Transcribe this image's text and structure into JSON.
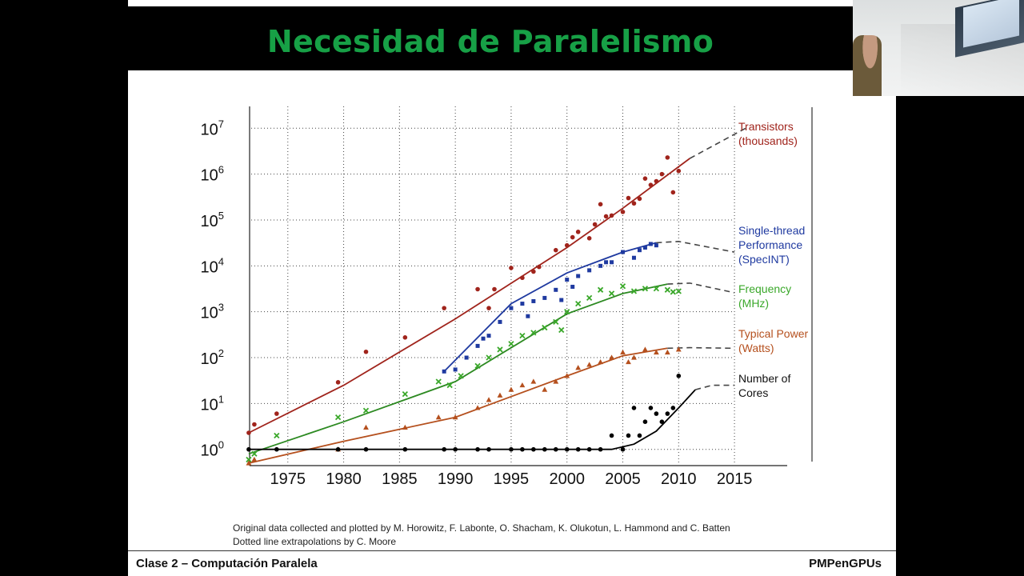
{
  "slide": {
    "title": "Necesidad de Paralelismo",
    "footer_left": "Clase 2 – Computación Paralela",
    "footer_right": "PMPenGPUs",
    "credit_line1": "Original data collected and plotted by M. Horowitz, F. Labonte, O. Shacham, K. Olukotun, L. Hammond and C. Batten",
    "credit_line2": "Dotted line extrapolations by C. Moore",
    "title_color": "#17a046"
  },
  "chart_data": {
    "type": "scatter",
    "y_scale": "log",
    "xlim": [
      1970,
      2017
    ],
    "ylim": [
      0.5,
      20000000
    ],
    "x_ticks": [
      1975,
      1980,
      1985,
      1990,
      1995,
      2000,
      2005,
      2010,
      2015
    ],
    "x_tick_labels": [
      "1975",
      "1980",
      "1985",
      "1990",
      "1995",
      "2000",
      "2005",
      "2010",
      "2015"
    ],
    "y_ticks": [
      1,
      10,
      100,
      1000,
      10000,
      100000,
      1000000,
      10000000
    ],
    "y_tick_labels": [
      {
        "base": "10",
        "exp": "0"
      },
      {
        "base": "10",
        "exp": "1"
      },
      {
        "base": "10",
        "exp": "2"
      },
      {
        "base": "10",
        "exp": "3"
      },
      {
        "base": "10",
        "exp": "4"
      },
      {
        "base": "10",
        "exp": "5"
      },
      {
        "base": "10",
        "exp": "6"
      },
      {
        "base": "10",
        "exp": "7"
      }
    ],
    "grid": "dotted",
    "legend_placement": "right",
    "series": [
      {
        "name_lines": [
          "Transistors",
          "(thousands)"
        ],
        "color": "#a0241c",
        "marker": "circle",
        "trend": [
          [
            1971.5,
            2.3
          ],
          [
            1980,
            25
          ],
          [
            1990,
            700
          ],
          [
            2000,
            25000
          ],
          [
            2005,
            180000
          ],
          [
            2011,
            2200000
          ]
        ],
        "extrapolation": [
          [
            2011,
            2200000
          ],
          [
            2016,
            10000000
          ]
        ],
        "points": [
          [
            1971.5,
            2.3
          ],
          [
            1972,
            3.5
          ],
          [
            1974,
            6
          ],
          [
            1979.5,
            29
          ],
          [
            1982,
            134
          ],
          [
            1985.5,
            275
          ],
          [
            1989,
            1200
          ],
          [
            1992,
            3100
          ],
          [
            1993,
            1200
          ],
          [
            1993.5,
            3100
          ],
          [
            1995,
            9000
          ],
          [
            1996,
            5500
          ],
          [
            1997,
            7500
          ],
          [
            1997.5,
            9500
          ],
          [
            1999,
            22000
          ],
          [
            2000,
            28000
          ],
          [
            2000.5,
            42000
          ],
          [
            2001,
            55000
          ],
          [
            2002,
            40000
          ],
          [
            2002.5,
            80000
          ],
          [
            2003,
            220000
          ],
          [
            2003.5,
            120000
          ],
          [
            2004,
            125000
          ],
          [
            2005,
            150000
          ],
          [
            2005.5,
            300000
          ],
          [
            2006,
            230000
          ],
          [
            2006.5,
            290000
          ],
          [
            2007,
            800000
          ],
          [
            2007.5,
            580000
          ],
          [
            2008,
            700000
          ],
          [
            2008.5,
            1000000
          ],
          [
            2009,
            2300000
          ],
          [
            2009.5,
            400000
          ],
          [
            2010,
            1170000
          ]
        ]
      },
      {
        "name_lines": [
          "Single-thread",
          "Performance",
          "(SpecINT)"
        ],
        "color": "#1f3aa0",
        "marker": "square",
        "trend": [
          [
            1989,
            50
          ],
          [
            1995,
            1500
          ],
          [
            2000,
            7000
          ],
          [
            2005,
            20000
          ],
          [
            2008,
            32000
          ]
        ],
        "extrapolation": [
          [
            2008,
            32000
          ],
          [
            2010,
            34000
          ],
          [
            2015,
            20000
          ]
        ],
        "points": [
          [
            1989,
            50
          ],
          [
            1990,
            55
          ],
          [
            1991,
            100
          ],
          [
            1992,
            180
          ],
          [
            1992.5,
            260
          ],
          [
            1993,
            300
          ],
          [
            1994,
            600
          ],
          [
            1995,
            1200
          ],
          [
            1996,
            1500
          ],
          [
            1996.5,
            800
          ],
          [
            1997,
            1700
          ],
          [
            1998,
            2000
          ],
          [
            1999,
            3000
          ],
          [
            1999.5,
            1800
          ],
          [
            2000,
            5000
          ],
          [
            2000.5,
            3500
          ],
          [
            2001,
            6000
          ],
          [
            2002,
            8000
          ],
          [
            2003,
            10000
          ],
          [
            2003.5,
            12000
          ],
          [
            2004,
            12000
          ],
          [
            2005,
            20000
          ],
          [
            2006,
            15000
          ],
          [
            2006.5,
            22000
          ],
          [
            2007,
            25000
          ],
          [
            2007.5,
            30000
          ],
          [
            2008,
            28000
          ]
        ]
      },
      {
        "name_lines": [
          "Frequency",
          "(MHz)"
        ],
        "color": "#3aa82a",
        "marker": "cross",
        "trend": [
          [
            1971.5,
            0.8
          ],
          [
            1980,
            4
          ],
          [
            1990,
            30
          ],
          [
            2000,
            900
          ],
          [
            2005,
            2500
          ],
          [
            2009,
            4000
          ]
        ],
        "extrapolation": [
          [
            2009,
            4000
          ],
          [
            2011,
            4200
          ],
          [
            2015,
            2600
          ]
        ],
        "points": [
          [
            1971.5,
            0.6
          ],
          [
            1972,
            0.8
          ],
          [
            1974,
            2
          ],
          [
            1979.5,
            5
          ],
          [
            1982,
            7
          ],
          [
            1985.5,
            16
          ],
          [
            1988.5,
            30
          ],
          [
            1989.5,
            25
          ],
          [
            1990.5,
            40
          ],
          [
            1992,
            66
          ],
          [
            1993,
            100
          ],
          [
            1994,
            150
          ],
          [
            1995,
            200
          ],
          [
            1996,
            300
          ],
          [
            1997,
            350
          ],
          [
            1998,
            450
          ],
          [
            1999,
            600
          ],
          [
            1999.5,
            400
          ],
          [
            2000,
            1000
          ],
          [
            2001,
            1500
          ],
          [
            2002,
            2000
          ],
          [
            2003,
            3000
          ],
          [
            2004,
            2500
          ],
          [
            2005,
            3600
          ],
          [
            2006,
            2800
          ],
          [
            2007,
            3200
          ],
          [
            2008,
            3200
          ],
          [
            2009,
            3000
          ],
          [
            2009.5,
            2700
          ],
          [
            2010,
            2800
          ]
        ]
      },
      {
        "name_lines": [
          "Typical Power",
          "(Watts)"
        ],
        "color": "#b5501e",
        "marker": "triangle",
        "trend": [
          [
            1971.5,
            0.5
          ],
          [
            1980,
            1.5
          ],
          [
            1990,
            5
          ],
          [
            2000,
            40
          ],
          [
            2005,
            110
          ],
          [
            2009,
            160
          ]
        ],
        "extrapolation": [
          [
            2009,
            160
          ],
          [
            2011,
            165
          ],
          [
            2015,
            160
          ]
        ],
        "points": [
          [
            1971.5,
            0.5
          ],
          [
            1972,
            0.6
          ],
          [
            1979.5,
            1
          ],
          [
            1982,
            3
          ],
          [
            1985.5,
            3
          ],
          [
            1988.5,
            5
          ],
          [
            1990,
            5
          ],
          [
            1992,
            8
          ],
          [
            1993,
            12
          ],
          [
            1994,
            15
          ],
          [
            1995,
            20
          ],
          [
            1996,
            25
          ],
          [
            1997,
            30
          ],
          [
            1998,
            20
          ],
          [
            1999,
            30
          ],
          [
            2000,
            40
          ],
          [
            2001,
            60
          ],
          [
            2002,
            70
          ],
          [
            2003,
            80
          ],
          [
            2004,
            100
          ],
          [
            2005,
            130
          ],
          [
            2005.5,
            80
          ],
          [
            2006,
            100
          ],
          [
            2007,
            150
          ],
          [
            2008,
            130
          ],
          [
            2009,
            130
          ],
          [
            2010,
            150
          ]
        ]
      },
      {
        "name_lines": [
          "Number of",
          "Cores"
        ],
        "color": "#000000",
        "marker": "circle",
        "trend": [
          [
            1971.5,
            1
          ],
          [
            2004,
            1
          ],
          [
            2006,
            1.3
          ],
          [
            2008,
            2.5
          ],
          [
            2010,
            8
          ],
          [
            2011.5,
            20
          ]
        ],
        "extrapolation": [
          [
            2011.5,
            20
          ],
          [
            2013,
            25
          ],
          [
            2015,
            25
          ]
        ],
        "points": [
          [
            1971.5,
            1
          ],
          [
            1974,
            1
          ],
          [
            1979.5,
            1
          ],
          [
            1982,
            1
          ],
          [
            1985.5,
            1
          ],
          [
            1989,
            1
          ],
          [
            1990,
            1
          ],
          [
            1992,
            1
          ],
          [
            1993,
            1
          ],
          [
            1995,
            1
          ],
          [
            1996,
            1
          ],
          [
            1997,
            1
          ],
          [
            1998,
            1
          ],
          [
            1999,
            1
          ],
          [
            2000,
            1
          ],
          [
            2001,
            1
          ],
          [
            2002,
            1
          ],
          [
            2003,
            1
          ],
          [
            2004,
            2
          ],
          [
            2005,
            1
          ],
          [
            2005.5,
            2
          ],
          [
            2006,
            8
          ],
          [
            2006.5,
            2
          ],
          [
            2007,
            4
          ],
          [
            2007.5,
            8
          ],
          [
            2008,
            6
          ],
          [
            2008.5,
            4
          ],
          [
            2009,
            6
          ],
          [
            2009.5,
            8
          ],
          [
            2010,
            40
          ]
        ]
      }
    ]
  }
}
